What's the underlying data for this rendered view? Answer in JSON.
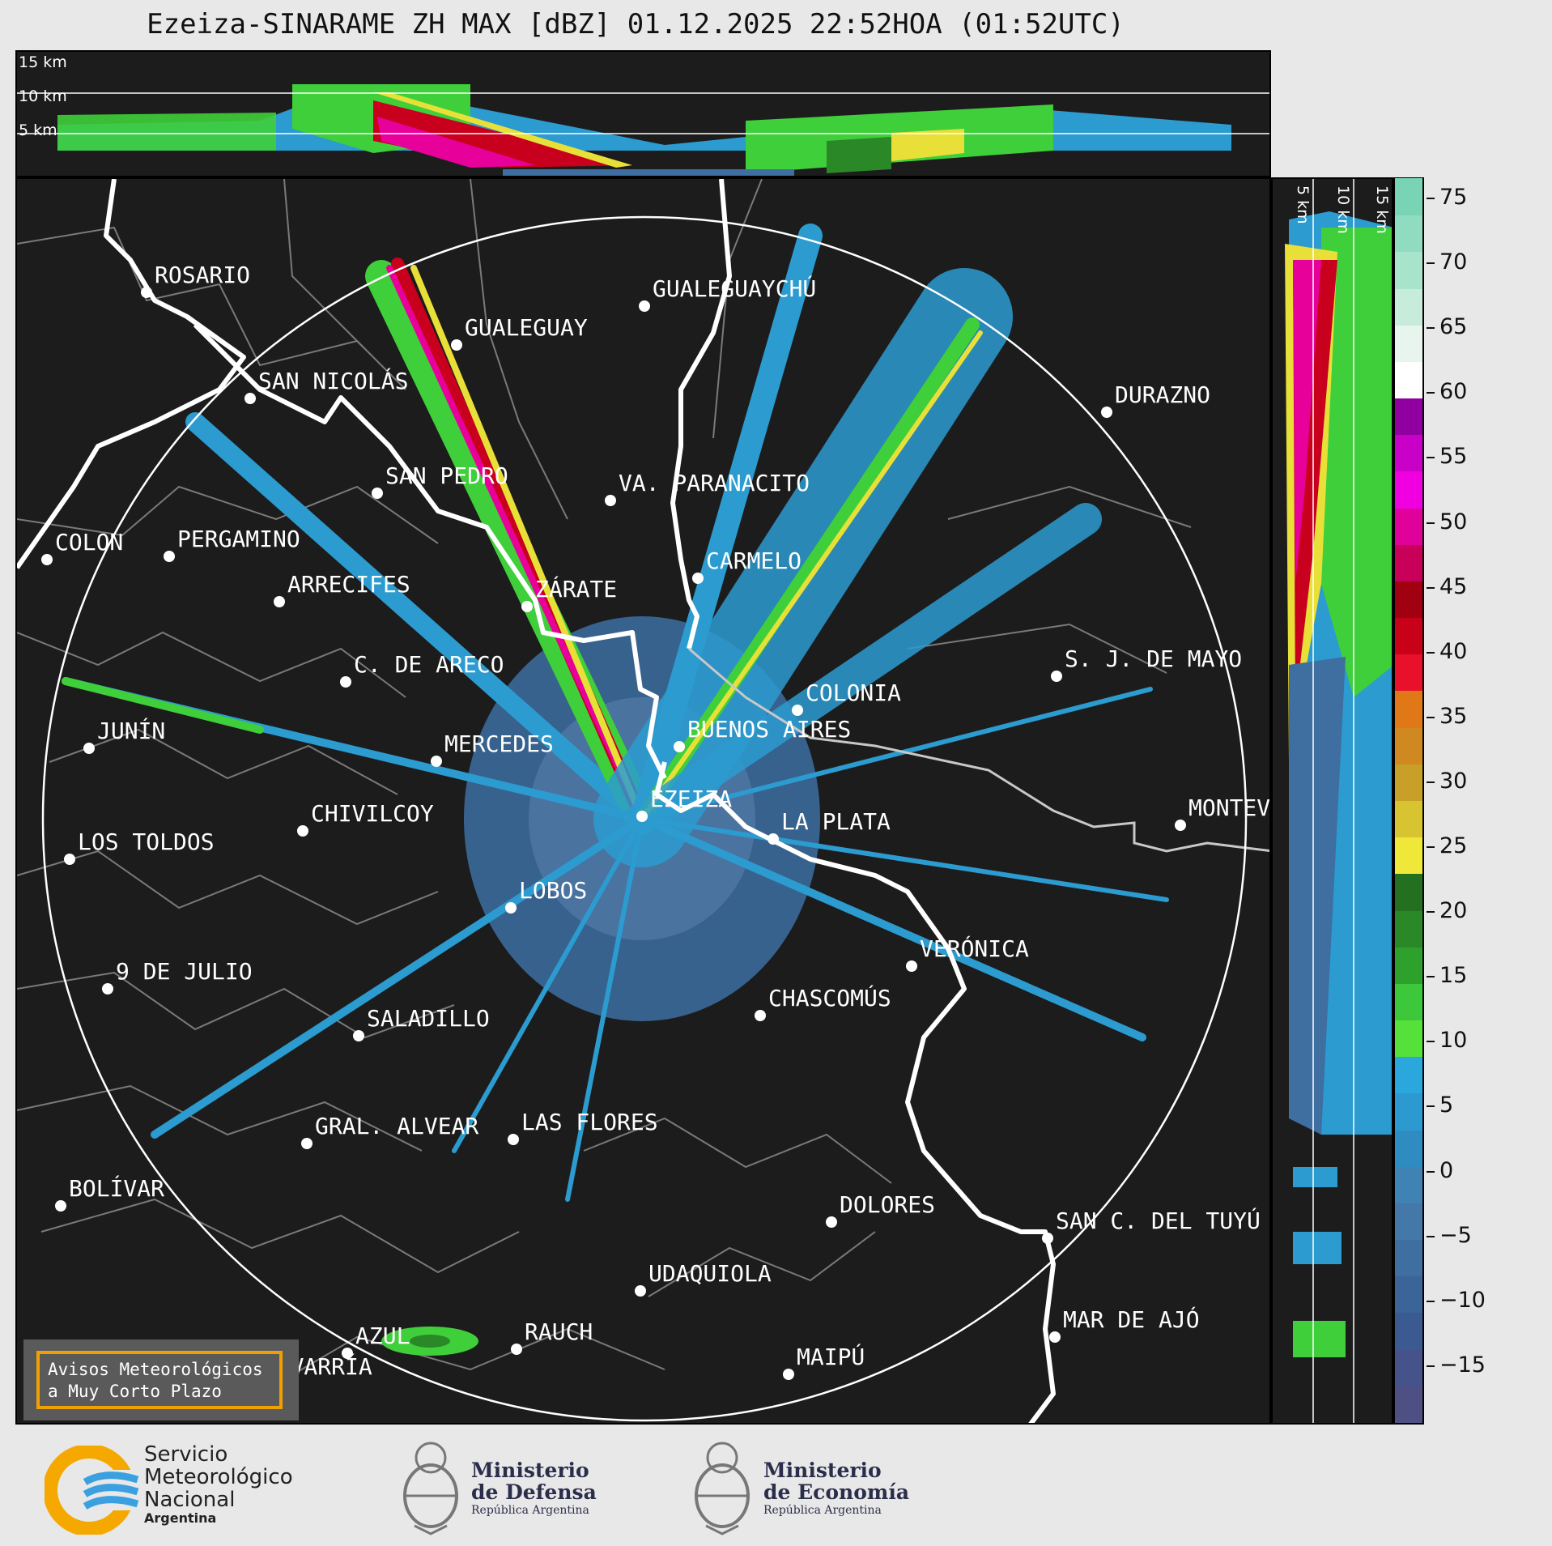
{
  "title": "Ezeiza-SINARAME ZH MAX [dBZ] 01.12.2025 22:52HOA (01:52UTC)",
  "top_panel_labels": [
    "15 km",
    "10 km",
    "5 km"
  ],
  "side_panel_labels": [
    "5 km",
    "10 km",
    "15 km"
  ],
  "cities": [
    {
      "name": "ROSARIO"
    },
    {
      "name": "GUALEGUAYCHÚ"
    },
    {
      "name": "GUALEGUAY"
    },
    {
      "name": "SAN NICOLÁS"
    },
    {
      "name": "DURAZNO"
    },
    {
      "name": "SAN PEDRO"
    },
    {
      "name": "VA. PARANACITO"
    },
    {
      "name": "COLON"
    },
    {
      "name": "PERGAMINO"
    },
    {
      "name": "CARMELO"
    },
    {
      "name": "ARRECIFES"
    },
    {
      "name": "ZÁRATE"
    },
    {
      "name": "S. J. DE MAYO"
    },
    {
      "name": "C. DE ARECO"
    },
    {
      "name": "COLONIA"
    },
    {
      "name": "JUNÍN"
    },
    {
      "name": "BUENOS AIRES"
    },
    {
      "name": "MERCEDES"
    },
    {
      "name": "MONTEVIDEO"
    },
    {
      "name": "EZEIZA"
    },
    {
      "name": "CHIVILCOY"
    },
    {
      "name": "LA PLATA"
    },
    {
      "name": "LOS TOLDOS"
    },
    {
      "name": "LOBOS"
    },
    {
      "name": "VERÓNICA"
    },
    {
      "name": "9 DE JULIO"
    },
    {
      "name": "CHASCOMÚS"
    },
    {
      "name": "SALADILLO"
    },
    {
      "name": "GRAL. ALVEAR"
    },
    {
      "name": "LAS FLORES"
    },
    {
      "name": "BOLÍVAR"
    },
    {
      "name": "DOLORES"
    },
    {
      "name": "SAN C. DEL TUYÚ"
    },
    {
      "name": "UDAQUIOLA"
    },
    {
      "name": "MAR DE AJÓ"
    },
    {
      "name": "AZUL"
    },
    {
      "name": "RAUCH"
    },
    {
      "name": "MAIPÚ"
    },
    {
      "name": "OLAVARRÍA"
    }
  ],
  "colorbar": {
    "unit": "dBZ",
    "ticks": [
      "75",
      "70",
      "65",
      "60",
      "55",
      "50",
      "45",
      "40",
      "35",
      "30",
      "25",
      "20",
      "15",
      "10",
      "5",
      "0",
      "−5",
      "−10",
      "−15"
    ],
    "colors": [
      "#4e4f82",
      "#46528a",
      "#3c5a92",
      "#3b6498",
      "#3f6ea0",
      "#4378a8",
      "#3f82b4",
      "#2f8cc0",
      "#2c9ad0",
      "#2aa8de",
      "#56e03a",
      "#3cc83a",
      "#2ea02c",
      "#2a8826",
      "#237020",
      "#f0e838",
      "#d8c430",
      "#c8a028",
      "#d08820",
      "#e07818",
      "#e8102a",
      "#c80018",
      "#a00010",
      "#c8005a",
      "#e0009a",
      "#f000e0",
      "#c800c8",
      "#9000a0",
      "#ffffff",
      "#e8f4ee",
      "#c8ecdc",
      "#a8e4cc",
      "#90dcc0",
      "#78d4b4"
    ]
  },
  "avisos": {
    "line1": "Avisos Meteorológicos",
    "line2": "a Muy Corto Plazo"
  },
  "logos": {
    "smn": {
      "line1": "Servicio",
      "line2": "Meteorológico",
      "line3": "Nacional",
      "line4": "Argentina"
    },
    "defensa": {
      "line1": "Ministerio",
      "line2": "de Defensa",
      "line3": "República Argentina"
    },
    "economia": {
      "line1": "Ministerio",
      "line2": "de Economía",
      "line3": "República Argentina"
    }
  }
}
